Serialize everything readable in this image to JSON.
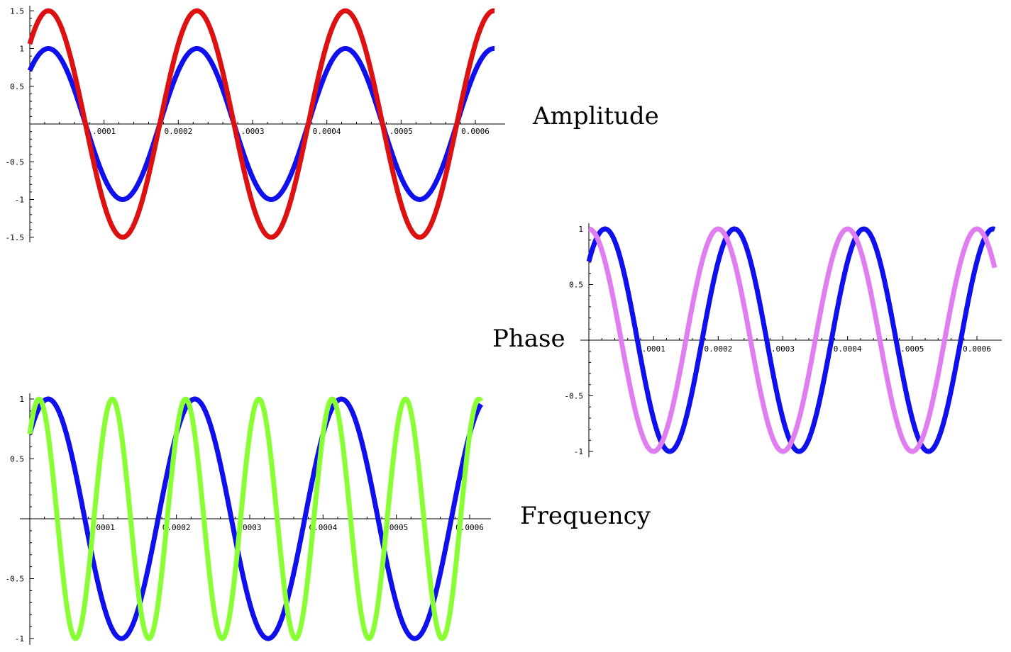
{
  "labels": {
    "amplitude": "Amplitude",
    "phase": "Phase",
    "frequency": "Frequency"
  },
  "chart_data": [
    {
      "id": "amplitude",
      "type": "line",
      "title": "",
      "xlabel": "",
      "ylabel": "",
      "xlim": [
        0,
        0.0006
      ],
      "ylim": [
        -1.5,
        1.5
      ],
      "grid": false,
      "x_ticks": [
        0.0001,
        0.0002,
        0.0003,
        0.0004,
        0.0005,
        0.0006
      ],
      "x_tick_labels": [
        ".0001",
        "0.0002",
        ".0003",
        "0.0004",
        ".0005",
        "0.0006"
      ],
      "y_ticks": [
        1.5,
        1,
        0.5,
        -0.5,
        -1,
        -1.5
      ],
      "y_tick_labels": [
        "1.5",
        "1",
        "0.5",
        "-0.5",
        "-1",
        "-1.5"
      ],
      "series": [
        {
          "color": "#1010ee",
          "amplitude": 1.0,
          "frequency_hz": 5000,
          "phase_rad": 0.785
        },
        {
          "color": "#dd1111",
          "amplitude": 1.5,
          "frequency_hz": 5000,
          "phase_rad": 0.785
        }
      ]
    },
    {
      "id": "phase",
      "type": "line",
      "title": "",
      "xlabel": "",
      "ylabel": "",
      "xlim": [
        0,
        0.0006
      ],
      "ylim": [
        -1,
        1
      ],
      "grid": false,
      "x_ticks": [
        0.0001,
        0.0002,
        0.0003,
        0.0004,
        0.0005,
        0.0006
      ],
      "x_tick_labels": [
        ".0001",
        "0.0002",
        ".0003",
        "0.0004",
        ".0005",
        "0.0006"
      ],
      "y_ticks": [
        1,
        0.5,
        -0.5,
        -1
      ],
      "y_tick_labels": [
        "1",
        "0.5",
        "-0.5",
        "-1"
      ],
      "series": [
        {
          "color": "#1010ee",
          "amplitude": 1.0,
          "frequency_hz": 5000,
          "phase_rad": 0.785
        },
        {
          "color": "#e07df0",
          "amplitude": 1.0,
          "frequency_hz": 5000,
          "phase_rad": 1.571
        }
      ]
    },
    {
      "id": "frequency",
      "type": "line",
      "title": "",
      "xlabel": "",
      "ylabel": "",
      "xlim": [
        0,
        0.0006
      ],
      "ylim": [
        -1,
        1
      ],
      "grid": false,
      "x_ticks": [
        0.0001,
        0.0002,
        0.0003,
        0.0004,
        0.0005,
        0.0006
      ],
      "x_tick_labels": [
        ".0001",
        "0.0002",
        ".0003",
        "0.0004",
        ".0005",
        "0.0006"
      ],
      "y_ticks": [
        1,
        0.5,
        -0.5,
        -1
      ],
      "y_tick_labels": [
        "1",
        "0.5",
        "-0.5",
        "-1"
      ],
      "series": [
        {
          "color": "#1010ee",
          "amplitude": 1.0,
          "frequency_hz": 5000,
          "phase_rad": 0.785
        },
        {
          "color": "#88ff33",
          "amplitude": 1.0,
          "frequency_hz": 10000,
          "phase_rad": 0.785
        }
      ]
    }
  ]
}
